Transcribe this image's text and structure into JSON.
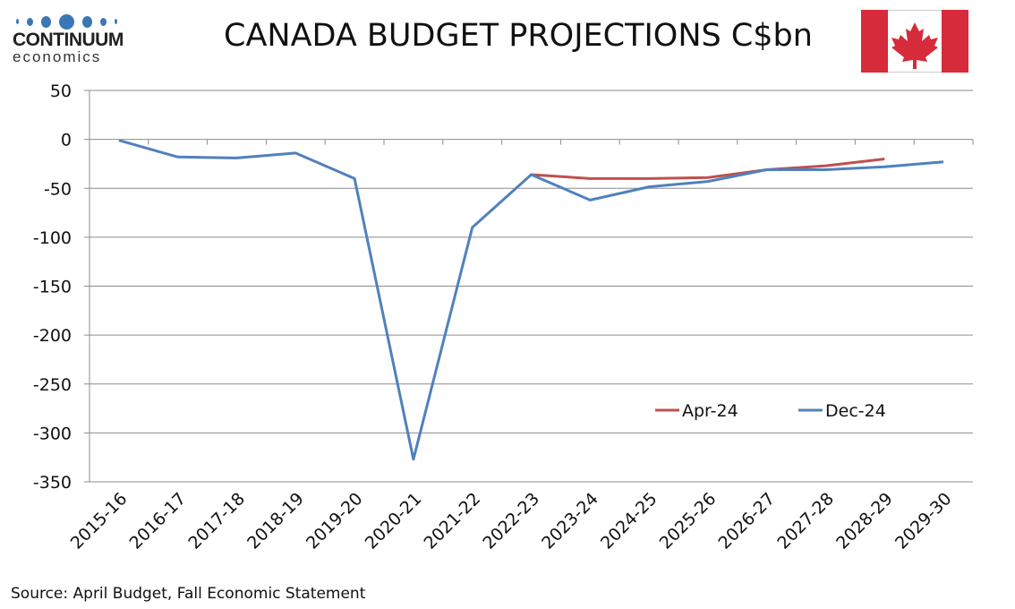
{
  "header": {
    "title": "CANADA BUDGET PROJECTIONS C$bn",
    "logo_brand": "CONTINUUM",
    "logo_sub": "economics",
    "flag": "canada-flag"
  },
  "source": "Source: April Budget, Fall Economic Statement",
  "colors": {
    "apr": "#c0504d",
    "dec": "#4f81bd",
    "grid": "#8c8c8c",
    "flag_red": "#d52b3b"
  },
  "chart_data": {
    "type": "line",
    "title": "CANADA BUDGET PROJECTIONS C$bn",
    "xlabel": "",
    "ylabel": "",
    "ylim": [
      -350,
      50
    ],
    "yticks": [
      50,
      0,
      -50,
      -100,
      -150,
      -200,
      -250,
      -300,
      -350
    ],
    "grid": true,
    "legend_placement": "bottom-right",
    "categories": [
      "2015-16",
      "2016-17",
      "2017-18",
      "2018-19",
      "2019-20",
      "2020-21",
      "2021-22",
      "2022-23",
      "2023-24",
      "2024-25",
      "2025-26",
      "2026-27",
      "2027-28",
      "2028-29",
      "2029-30"
    ],
    "series": [
      {
        "name": "Apr-24",
        "color": "#c0504d",
        "values": [
          null,
          null,
          null,
          null,
          null,
          null,
          null,
          -36,
          -40,
          -40,
          -39,
          -31,
          -27,
          -20,
          null
        ]
      },
      {
        "name": "Dec-24",
        "color": "#4f81bd",
        "values": [
          -1,
          -18,
          -19,
          -14,
          -40,
          -327,
          -90,
          -36,
          -62,
          -48.5,
          -43,
          -31,
          -31,
          -28,
          -23
        ]
      }
    ]
  }
}
